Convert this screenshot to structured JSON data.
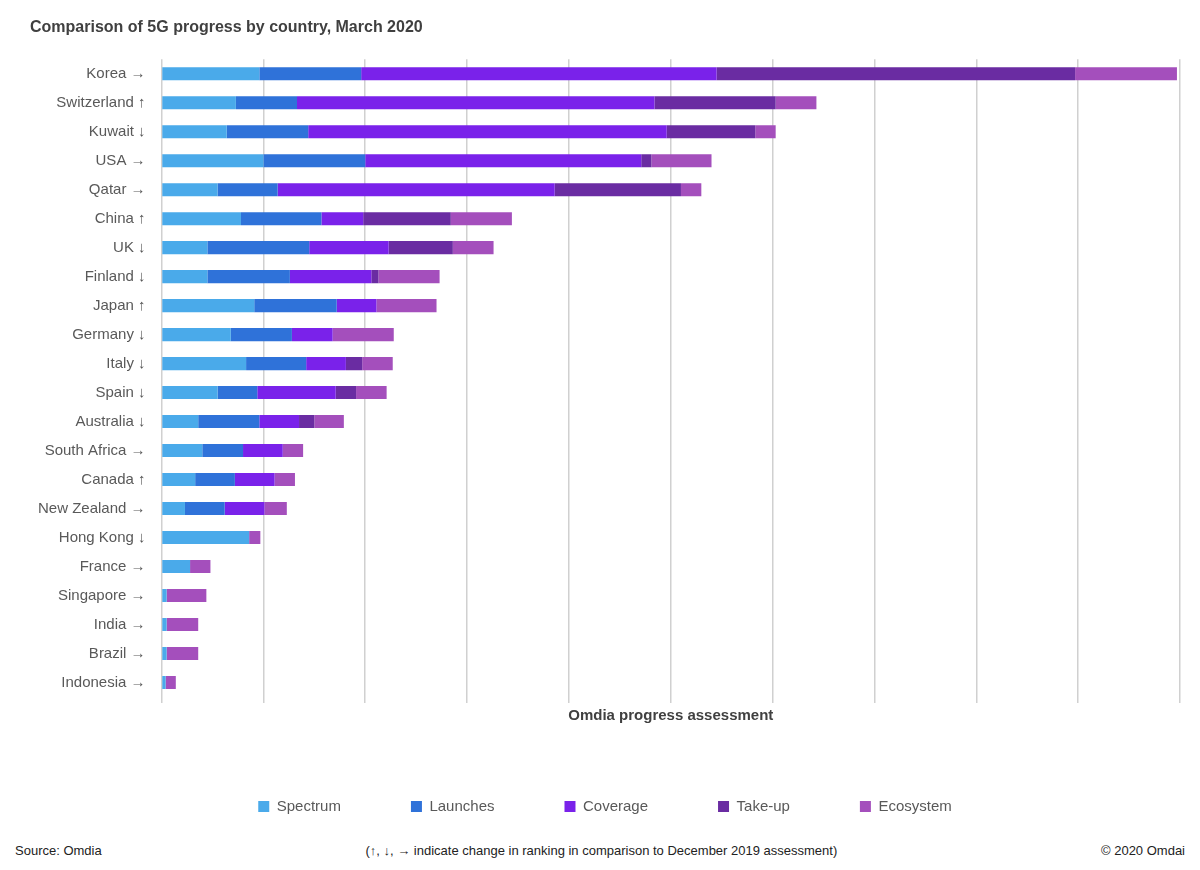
{
  "chart_data": {
    "type": "bar",
    "title": "Comparison of 5G progress by country, March 2020",
    "x_label": "Omdia progress assessment",
    "annotations": [
      "Source: Omdia",
      "(↑, ↓, → indicate change in ranking in comparison to December 2019 assessment)",
      "© 2020 Omdai"
    ],
    "orientation": "horizontal",
    "stacked": true,
    "grid": true,
    "legend": "bottom",
    "tick_labels": "y",
    "data_labels": false,
    "xlim": [
      0,
      10
    ],
    "xticks": [
      0,
      1,
      2,
      3,
      4,
      5,
      6,
      7,
      8,
      9,
      10
    ],
    "categories": [
      "Korea →",
      "Switzerland ↑",
      "Kuwait ↓",
      "USA →",
      "Qatar →",
      "China ↑",
      "UK ↓",
      "Finland ↓",
      "Japan ↑",
      "Germany ↓",
      "Italy ↓",
      "Spain ↓",
      "Australia ↓",
      "South Africa →",
      "Canada ↑",
      "New Zealand →",
      "Hong Kong ↓",
      "France →",
      "Singapore →",
      "India →",
      "Brazil →",
      "Indonesia →"
    ],
    "series": [
      {
        "name": "Spectrum",
        "color": "#4aaaea",
        "values": [
          0.96,
          0.73,
          0.64,
          1.0,
          0.55,
          0.78,
          0.45,
          0.45,
          0.91,
          0.68,
          0.83,
          0.55,
          0.36,
          0.4,
          0.33,
          0.23,
          0.86,
          0.28,
          0.05,
          0.05,
          0.05,
          0.04
        ]
      },
      {
        "name": "Launches",
        "color": "#2f72d9",
        "values": [
          1.0,
          0.6,
          0.8,
          1.0,
          0.59,
          0.79,
          1.0,
          0.81,
          0.81,
          0.6,
          0.59,
          0.39,
          0.6,
          0.4,
          0.39,
          0.39,
          0,
          0,
          0,
          0,
          0,
          0
        ]
      },
      {
        "name": "Coverage",
        "color": "#7a22ea",
        "values": [
          3.49,
          3.51,
          3.52,
          2.71,
          2.72,
          0.41,
          0.78,
          0.8,
          0.39,
          0.4,
          0.39,
          0.77,
          0.39,
          0.39,
          0.39,
          0.39,
          0,
          0,
          0,
          0,
          0,
          0
        ]
      },
      {
        "name": "Take-up",
        "color": "#6a2ca2",
        "values": [
          3.52,
          1.19,
          0.87,
          0.1,
          1.24,
          0.86,
          0.63,
          0.07,
          0,
          0,
          0.16,
          0.2,
          0.15,
          0,
          0,
          0,
          0,
          0,
          0,
          0,
          0,
          0
        ]
      },
      {
        "name": "Ecosystem",
        "color": "#a44fbc",
        "values": [
          1.0,
          0.4,
          0.2,
          0.59,
          0.2,
          0.6,
          0.4,
          0.6,
          0.59,
          0.6,
          0.3,
          0.3,
          0.29,
          0.2,
          0.2,
          0.22,
          0.11,
          0.2,
          0.39,
          0.31,
          0.31,
          0.1
        ]
      }
    ]
  }
}
